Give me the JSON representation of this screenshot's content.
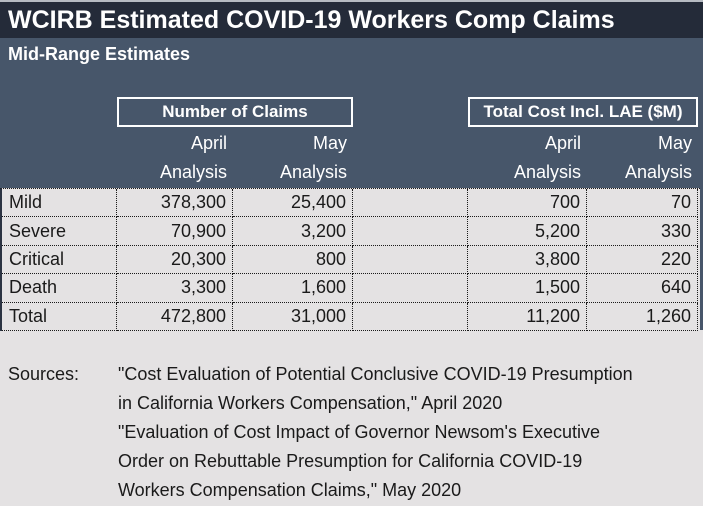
{
  "colors": {
    "title_bar_bg": "#242B39",
    "header_panel_bg": "#47566A",
    "table_bg": "#E4E2E3",
    "header_text": "#FFFFFF",
    "body_text": "#1A1A1A"
  },
  "header": {
    "title": "WCIRB Estimated COVID-19 Workers Comp Claims",
    "subtitle": "Mid-Range Estimates"
  },
  "groups": [
    {
      "label": "Number of Claims"
    },
    {
      "label": "Total Cost Incl. LAE ($M)"
    }
  ],
  "col_headers": [
    {
      "line1": "April",
      "line2": "Analysis"
    },
    {
      "line1": "May",
      "line2": "Analysis"
    },
    {
      "line1": "April",
      "line2": "Analysis"
    },
    {
      "line1": "May",
      "line2": "Analysis"
    }
  ],
  "chart_data": {
    "type": "table",
    "title": "WCIRB Estimated COVID-19 Workers Comp Claims",
    "subtitle": "Mid-Range Estimates",
    "column_groups": [
      {
        "label": "Number of Claims",
        "columns": [
          "April Analysis",
          "May Analysis"
        ]
      },
      {
        "label": "Total Cost Incl. LAE ($M)",
        "columns": [
          "April Analysis",
          "May Analysis"
        ]
      }
    ],
    "row_categories": [
      "Mild",
      "Severe",
      "Critical",
      "Death",
      "Total"
    ],
    "rows": [
      [
        "Mild",
        "378,300",
        "25,400",
        "700",
        "70"
      ],
      [
        "Severe",
        "70,900",
        "3,200",
        "5,200",
        "330"
      ],
      [
        "Critical",
        "20,300",
        "800",
        "3,800",
        "220"
      ],
      [
        "Death",
        "3,300",
        "1,600",
        "1,500",
        "640"
      ],
      [
        "Total",
        "472,800",
        "31,000",
        "11,200",
        "1,260"
      ]
    ]
  },
  "sources": {
    "label": "Sources:",
    "lines": [
      "\"Cost Evaluation of Potential Conclusive COVID-19 Presumption",
      "in California Workers Compensation,\" April 2020",
      "\"Evaluation of Cost Impact of Governor Newsom's Executive",
      "Order on Rebuttable Presumption for California COVID-19",
      "Workers Compensation Claims,\" May 2020"
    ]
  }
}
